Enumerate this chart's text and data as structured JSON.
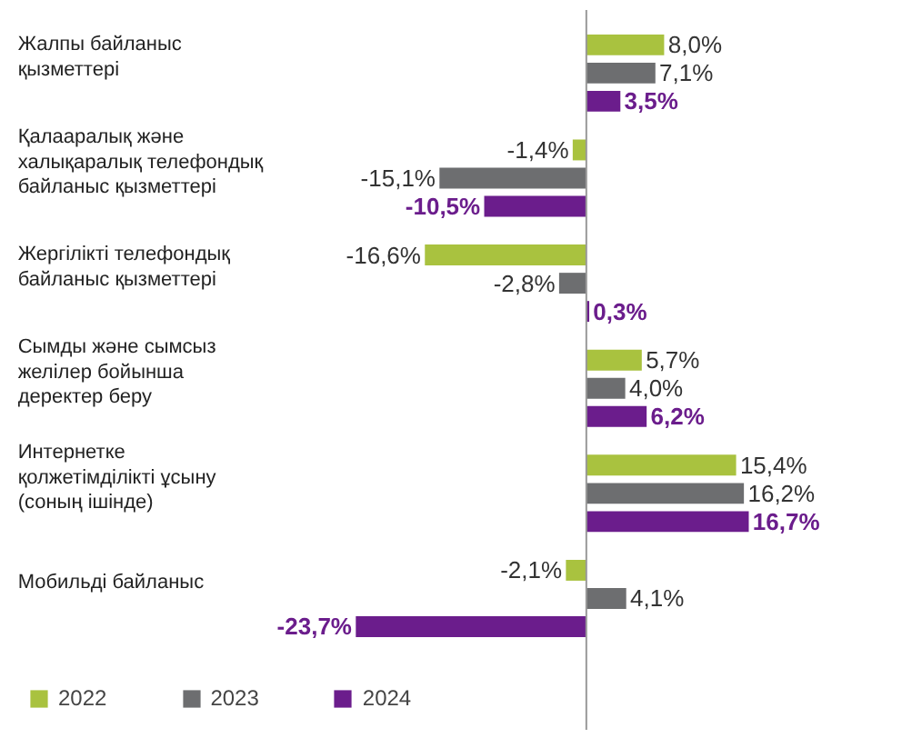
{
  "chart_data": {
    "type": "bar",
    "orientation": "horizontal",
    "categories": [
      "Жалпы байланыс қызметтері",
      "Қалааралық және халықаралық телефондық байланыс қызметтері",
      "Жергілікті телефондық байланыс қызметтері",
      "Сымды және сымсыз желілер бойынша деректер беру",
      "Интернетке қолжетімділікті ұсыну (соның ішінде)",
      "Мобильді байланыс"
    ],
    "series": [
      {
        "name": "2022",
        "color": "#a9c23f",
        "values": [
          8.0,
          -1.4,
          -16.6,
          5.7,
          15.4,
          -2.1
        ],
        "value_labels": [
          "8,0%",
          "-1,4%",
          "-16,6%",
          "5,7%",
          "15,4%",
          "-2,1%"
        ]
      },
      {
        "name": "2023",
        "color": "#6d6e70",
        "values": [
          7.1,
          -15.1,
          -2.8,
          4.0,
          16.2,
          4.1
        ],
        "value_labels": [
          "7,1%",
          "-15,1%",
          "-2,8%",
          "4,0%",
          "16,2%",
          "4,1%"
        ]
      },
      {
        "name": "2024",
        "color": "#6b1d8c",
        "values": [
          3.5,
          -10.5,
          0.3,
          6.2,
          16.7,
          -23.7
        ],
        "value_labels": [
          "3,5%",
          "-10,5%",
          "0,3%",
          "6,2%",
          "16,7%",
          "-23,7%"
        ]
      }
    ],
    "legend": "bottom",
    "grid": false
  }
}
